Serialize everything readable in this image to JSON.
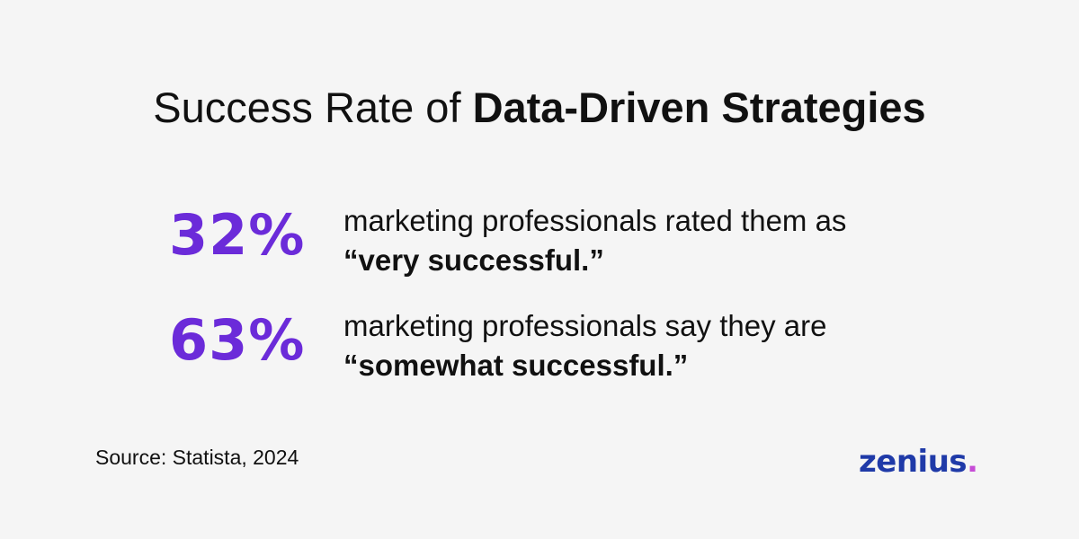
{
  "title": {
    "regular": "Success Rate of ",
    "bold": "Data-Driven Strategies"
  },
  "stats": [
    {
      "value": "32%",
      "line1": "marketing professionals rated them as",
      "line2": "“very successful.”"
    },
    {
      "value": "63%",
      "line1": "marketing professionals say they are",
      "line2": "“somewhat successful.”"
    }
  ],
  "source": "Source: Statista, 2024",
  "logo": {
    "text": "zenius",
    "dot": ".",
    "color": "#1f3aa8",
    "dot_color": "#c64cd6"
  },
  "colors": {
    "background": "#f5f5f5",
    "accent": "#6b2bd9",
    "text": "#111111"
  }
}
